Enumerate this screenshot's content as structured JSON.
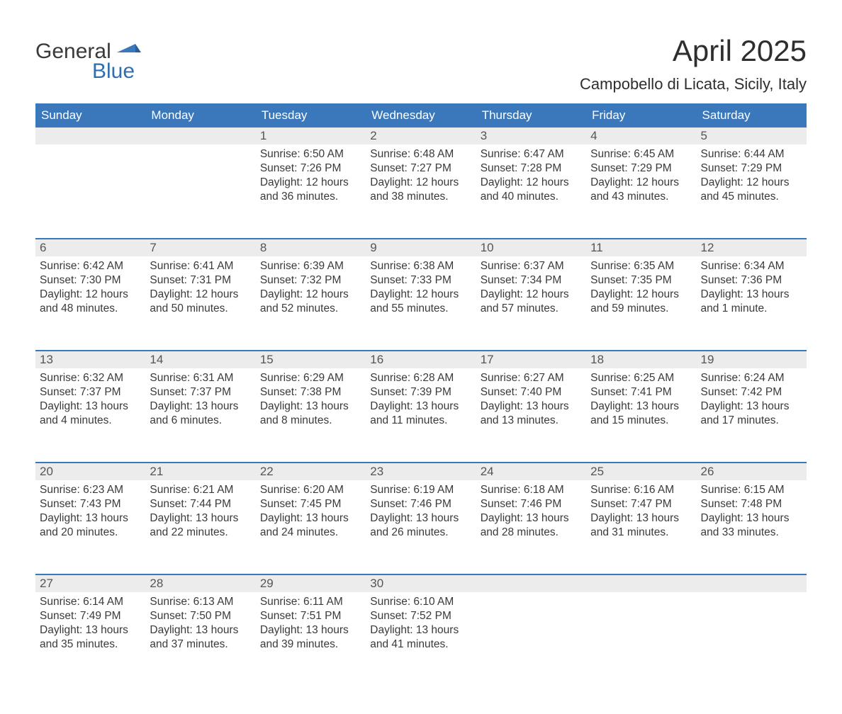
{
  "logo": {
    "text_general": "General",
    "text_blue": "Blue",
    "flag_color": "#3a78bb"
  },
  "header": {
    "title": "April 2025",
    "subtitle": "Campobello di Licata, Sicily, Italy"
  },
  "colors": {
    "header_bg": "#3a78bb",
    "header_text": "#ffffff",
    "daynum_bg": "#ececec",
    "daynum_border": "#3a78bb",
    "body_text": "#3a3a3a",
    "page_bg": "#ffffff",
    "logo_blue": "#2f6fb0",
    "logo_dark": "#3a3a3a"
  },
  "typography": {
    "title_fontsize": 42,
    "subtitle_fontsize": 22,
    "th_fontsize": 17,
    "daynum_fontsize": 17,
    "body_fontsize": 15.5,
    "logo_fontsize": 30
  },
  "calendar": {
    "weekday_labels": [
      "Sunday",
      "Monday",
      "Tuesday",
      "Wednesday",
      "Thursday",
      "Friday",
      "Saturday"
    ],
    "month_start_weekday_index": 2,
    "days": [
      {
        "n": 1,
        "sunrise": "6:50 AM",
        "sunset": "7:26 PM",
        "daylight": "12 hours and 36 minutes."
      },
      {
        "n": 2,
        "sunrise": "6:48 AM",
        "sunset": "7:27 PM",
        "daylight": "12 hours and 38 minutes."
      },
      {
        "n": 3,
        "sunrise": "6:47 AM",
        "sunset": "7:28 PM",
        "daylight": "12 hours and 40 minutes."
      },
      {
        "n": 4,
        "sunrise": "6:45 AM",
        "sunset": "7:29 PM",
        "daylight": "12 hours and 43 minutes."
      },
      {
        "n": 5,
        "sunrise": "6:44 AM",
        "sunset": "7:29 PM",
        "daylight": "12 hours and 45 minutes."
      },
      {
        "n": 6,
        "sunrise": "6:42 AM",
        "sunset": "7:30 PM",
        "daylight": "12 hours and 48 minutes."
      },
      {
        "n": 7,
        "sunrise": "6:41 AM",
        "sunset": "7:31 PM",
        "daylight": "12 hours and 50 minutes."
      },
      {
        "n": 8,
        "sunrise": "6:39 AM",
        "sunset": "7:32 PM",
        "daylight": "12 hours and 52 minutes."
      },
      {
        "n": 9,
        "sunrise": "6:38 AM",
        "sunset": "7:33 PM",
        "daylight": "12 hours and 55 minutes."
      },
      {
        "n": 10,
        "sunrise": "6:37 AM",
        "sunset": "7:34 PM",
        "daylight": "12 hours and 57 minutes."
      },
      {
        "n": 11,
        "sunrise": "6:35 AM",
        "sunset": "7:35 PM",
        "daylight": "12 hours and 59 minutes."
      },
      {
        "n": 12,
        "sunrise": "6:34 AM",
        "sunset": "7:36 PM",
        "daylight": "13 hours and 1 minute."
      },
      {
        "n": 13,
        "sunrise": "6:32 AM",
        "sunset": "7:37 PM",
        "daylight": "13 hours and 4 minutes."
      },
      {
        "n": 14,
        "sunrise": "6:31 AM",
        "sunset": "7:37 PM",
        "daylight": "13 hours and 6 minutes."
      },
      {
        "n": 15,
        "sunrise": "6:29 AM",
        "sunset": "7:38 PM",
        "daylight": "13 hours and 8 minutes."
      },
      {
        "n": 16,
        "sunrise": "6:28 AM",
        "sunset": "7:39 PM",
        "daylight": "13 hours and 11 minutes."
      },
      {
        "n": 17,
        "sunrise": "6:27 AM",
        "sunset": "7:40 PM",
        "daylight": "13 hours and 13 minutes."
      },
      {
        "n": 18,
        "sunrise": "6:25 AM",
        "sunset": "7:41 PM",
        "daylight": "13 hours and 15 minutes."
      },
      {
        "n": 19,
        "sunrise": "6:24 AM",
        "sunset": "7:42 PM",
        "daylight": "13 hours and 17 minutes."
      },
      {
        "n": 20,
        "sunrise": "6:23 AM",
        "sunset": "7:43 PM",
        "daylight": "13 hours and 20 minutes."
      },
      {
        "n": 21,
        "sunrise": "6:21 AM",
        "sunset": "7:44 PM",
        "daylight": "13 hours and 22 minutes."
      },
      {
        "n": 22,
        "sunrise": "6:20 AM",
        "sunset": "7:45 PM",
        "daylight": "13 hours and 24 minutes."
      },
      {
        "n": 23,
        "sunrise": "6:19 AM",
        "sunset": "7:46 PM",
        "daylight": "13 hours and 26 minutes."
      },
      {
        "n": 24,
        "sunrise": "6:18 AM",
        "sunset": "7:46 PM",
        "daylight": "13 hours and 28 minutes."
      },
      {
        "n": 25,
        "sunrise": "6:16 AM",
        "sunset": "7:47 PM",
        "daylight": "13 hours and 31 minutes."
      },
      {
        "n": 26,
        "sunrise": "6:15 AM",
        "sunset": "7:48 PM",
        "daylight": "13 hours and 33 minutes."
      },
      {
        "n": 27,
        "sunrise": "6:14 AM",
        "sunset": "7:49 PM",
        "daylight": "13 hours and 35 minutes."
      },
      {
        "n": 28,
        "sunrise": "6:13 AM",
        "sunset": "7:50 PM",
        "daylight": "13 hours and 37 minutes."
      },
      {
        "n": 29,
        "sunrise": "6:11 AM",
        "sunset": "7:51 PM",
        "daylight": "13 hours and 39 minutes."
      },
      {
        "n": 30,
        "sunrise": "6:10 AM",
        "sunset": "7:52 PM",
        "daylight": "13 hours and 41 minutes."
      }
    ],
    "labels": {
      "sunrise_prefix": "Sunrise: ",
      "sunset_prefix": "Sunset: ",
      "daylight_prefix": "Daylight: "
    }
  }
}
